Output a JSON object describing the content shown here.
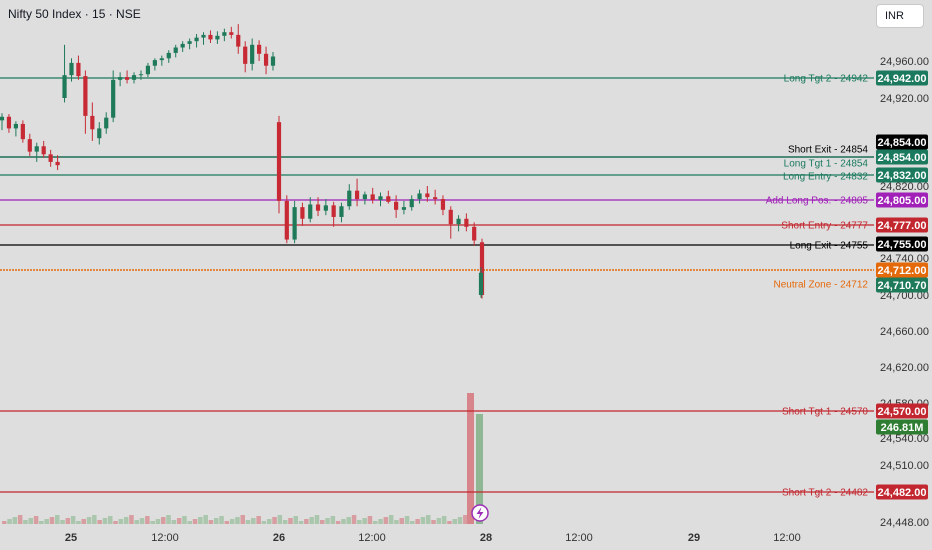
{
  "chart_data": {
    "type": "candlestick",
    "title": "Nifty 50 Index · 15 · NSE",
    "currency": "INR",
    "price_ticks": [
      24960,
      24920,
      24820,
      24740,
      24700,
      24660,
      24620,
      24580,
      24540,
      24510,
      24448
    ],
    "x_ticks": [
      "25",
      "12:00",
      "26",
      "12:00",
      "28",
      "12:00",
      "29",
      "12:00"
    ],
    "candles": [
      {
        "o": 24895,
        "h": 24903,
        "l": 24884,
        "c": 24899
      },
      {
        "o": 24899,
        "h": 24902,
        "l": 24881,
        "c": 24886
      },
      {
        "o": 24886,
        "h": 24894,
        "l": 24877,
        "c": 24891
      },
      {
        "o": 24891,
        "h": 24895,
        "l": 24870,
        "c": 24874
      },
      {
        "o": 24874,
        "h": 24880,
        "l": 24855,
        "c": 24860
      },
      {
        "o": 24860,
        "h": 24870,
        "l": 24848,
        "c": 24866
      },
      {
        "o": 24866,
        "h": 24872,
        "l": 24853,
        "c": 24857
      },
      {
        "o": 24857,
        "h": 24862,
        "l": 24842,
        "c": 24848
      },
      {
        "o": 24848,
        "h": 24856,
        "l": 24838,
        "c": 24844
      },
      {
        "o": 24920,
        "h": 24978,
        "l": 24915,
        "c": 24945
      },
      {
        "o": 24945,
        "h": 24963,
        "l": 24938,
        "c": 24958
      },
      {
        "o": 24958,
        "h": 24966,
        "l": 24940,
        "c": 24944
      },
      {
        "o": 24944,
        "h": 24950,
        "l": 24880,
        "c": 24900
      },
      {
        "o": 24900,
        "h": 24915,
        "l": 24872,
        "c": 24885
      },
      {
        "o": 24875,
        "h": 24893,
        "l": 24868,
        "c": 24886
      },
      {
        "o": 24886,
        "h": 24904,
        "l": 24880,
        "c": 24898
      },
      {
        "o": 24898,
        "h": 24950,
        "l": 24893,
        "c": 24940
      },
      {
        "o": 24940,
        "h": 24948,
        "l": 24933,
        "c": 24943
      },
      {
        "o": 24943,
        "h": 24950,
        "l": 24936,
        "c": 24940
      },
      {
        "o": 24940,
        "h": 24948,
        "l": 24936,
        "c": 24945
      },
      {
        "o": 24945,
        "h": 24950,
        "l": 24940,
        "c": 24946
      },
      {
        "o": 24946,
        "h": 24958,
        "l": 24943,
        "c": 24955
      },
      {
        "o": 24955,
        "h": 24963,
        "l": 24950,
        "c": 24961
      },
      {
        "o": 24961,
        "h": 24966,
        "l": 24955,
        "c": 24963
      },
      {
        "o": 24963,
        "h": 24972,
        "l": 24958,
        "c": 24969
      },
      {
        "o": 24969,
        "h": 24978,
        "l": 24964,
        "c": 24975
      },
      {
        "o": 24975,
        "h": 24982,
        "l": 24970,
        "c": 24979
      },
      {
        "o": 24979,
        "h": 24985,
        "l": 24973,
        "c": 24982
      },
      {
        "o": 24982,
        "h": 24990,
        "l": 24975,
        "c": 24986
      },
      {
        "o": 24986,
        "h": 24992,
        "l": 24978,
        "c": 24989
      },
      {
        "o": 24989,
        "h": 24994,
        "l": 24980,
        "c": 24984
      },
      {
        "o": 24984,
        "h": 24993,
        "l": 24979,
        "c": 24988
      },
      {
        "o": 24988,
        "h": 24996,
        "l": 24982,
        "c": 24992
      },
      {
        "o": 24992,
        "h": 24998,
        "l": 24985,
        "c": 24989
      },
      {
        "o": 24989,
        "h": 25001,
        "l": 24968,
        "c": 24976
      },
      {
        "o": 24976,
        "h": 24982,
        "l": 24948,
        "c": 24957
      },
      {
        "o": 24957,
        "h": 24985,
        "l": 24950,
        "c": 24978
      },
      {
        "o": 24978,
        "h": 24983,
        "l": 24960,
        "c": 24968
      },
      {
        "o": 24968,
        "h": 24976,
        "l": 24946,
        "c": 24955
      },
      {
        "o": 24955,
        "h": 24970,
        "l": 24950,
        "c": 24965
      },
      {
        "o": 24893,
        "h": 24900,
        "l": 24790,
        "c": 24804
      },
      {
        "o": 24804,
        "h": 24810,
        "l": 24757,
        "c": 24761
      },
      {
        "o": 24761,
        "h": 24804,
        "l": 24757,
        "c": 24797
      },
      {
        "o": 24797,
        "h": 24802,
        "l": 24776,
        "c": 24784
      },
      {
        "o": 24784,
        "h": 24808,
        "l": 24780,
        "c": 24800
      },
      {
        "o": 24800,
        "h": 24808,
        "l": 24787,
        "c": 24793
      },
      {
        "o": 24793,
        "h": 24806,
        "l": 24788,
        "c": 24799
      },
      {
        "o": 24799,
        "h": 24803,
        "l": 24775,
        "c": 24786
      },
      {
        "o": 24786,
        "h": 24802,
        "l": 24780,
        "c": 24798
      },
      {
        "o": 24798,
        "h": 24822,
        "l": 24794,
        "c": 24815
      },
      {
        "o": 24815,
        "h": 24828,
        "l": 24798,
        "c": 24806
      },
      {
        "o": 24806,
        "h": 24814,
        "l": 24800,
        "c": 24811
      },
      {
        "o": 24811,
        "h": 24818,
        "l": 24801,
        "c": 24805
      },
      {
        "o": 24805,
        "h": 24813,
        "l": 24798,
        "c": 24809
      },
      {
        "o": 24809,
        "h": 24815,
        "l": 24801,
        "c": 24803
      },
      {
        "o": 24803,
        "h": 24810,
        "l": 24785,
        "c": 24794
      },
      {
        "o": 24794,
        "h": 24804,
        "l": 24789,
        "c": 24797
      },
      {
        "o": 24797,
        "h": 24810,
        "l": 24793,
        "c": 24806
      },
      {
        "o": 24806,
        "h": 24816,
        "l": 24801,
        "c": 24812
      },
      {
        "o": 24812,
        "h": 24820,
        "l": 24803,
        "c": 24808
      },
      {
        "o": 24808,
        "h": 24816,
        "l": 24800,
        "c": 24806
      },
      {
        "o": 24806,
        "h": 24810,
        "l": 24788,
        "c": 24794
      },
      {
        "o": 24794,
        "h": 24798,
        "l": 24762,
        "c": 24778
      },
      {
        "o": 24778,
        "h": 24788,
        "l": 24770,
        "c": 24784
      },
      {
        "o": 24784,
        "h": 24790,
        "l": 24770,
        "c": 24775
      },
      {
        "o": 24775,
        "h": 24780,
        "l": 24754,
        "c": 24760
      },
      {
        "o": 24758,
        "h": 24762,
        "l": 24696,
        "c": 24700
      },
      {
        "o": 24700,
        "h": 24718,
        "l": 24697,
        "c": 24710.7
      }
    ],
    "volume_label": "246.81M",
    "levels": [
      {
        "label": "Long Tgt 2 - 24942",
        "value": 24942,
        "badge": "24,942.00",
        "color": "#1b7a5e"
      },
      {
        "label": "Short Exit - 24854",
        "value": 24854,
        "badge": "24,854.00",
        "color": "#000000"
      },
      {
        "label": "Long Tgt 1 - 24854",
        "value": 24854,
        "badge": "24,854.00",
        "color": "#1b7a5e"
      },
      {
        "label": "Long Entry - 24832",
        "value": 24832,
        "badge": "24,832.00",
        "color": "#1b7a5e"
      },
      {
        "label": "Add Long Pos. - 24805",
        "value": 24805,
        "badge": "24,805.00",
        "color": "#a020b8"
      },
      {
        "label": "Short Entry - 24777",
        "value": 24777,
        "badge": "24,777.00",
        "color": "#c2262e"
      },
      {
        "label": "Long Exit - 24755",
        "value": 24755,
        "badge": "24,755.00",
        "color": "#000000"
      },
      {
        "label": "Neutral Zone - 24712",
        "value": 24712,
        "badge": "24,712.00",
        "color": "#e3690b"
      },
      {
        "label": "Short Tgt 1 - 24570",
        "value": 24570,
        "badge": "24,570.00",
        "color": "#c2262e"
      },
      {
        "label": "Short Tgt 2 - 24482",
        "value": 24482,
        "badge": "24,482.00",
        "color": "#c2262e"
      }
    ],
    "current_price_badge": "24,710.70",
    "up_color": "#1f7a5a",
    "down_color": "#c72a34",
    "grid": false
  }
}
